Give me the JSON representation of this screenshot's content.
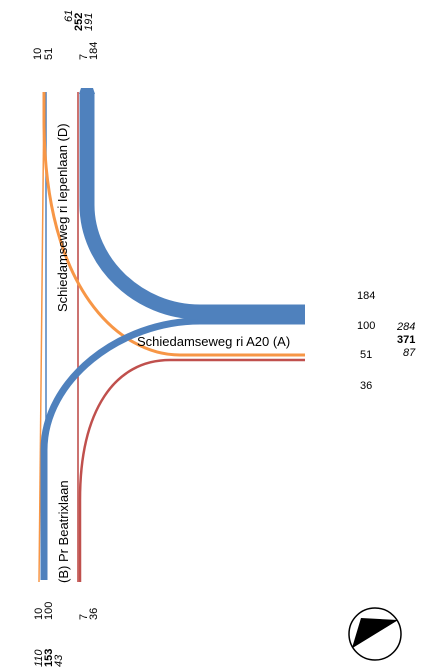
{
  "colors": {
    "blue": "#4f81bd",
    "orange": "#f79646",
    "red": "#c0504d",
    "background": "#ffffff",
    "text": "#000000"
  },
  "roads": {
    "left": "(B) Pr Beatrixlaan",
    "top": "Schiedamseweg ri Iepenlaan (D)",
    "right": "Schiedamseweg ri A20 (A)"
  },
  "top_counts": {
    "movements": [
      "10",
      "51",
      "7",
      "184"
    ],
    "totals": {
      "in": "61",
      "sum": "252",
      "out": "191"
    }
  },
  "left_counts": {
    "movements": [
      "10",
      "100",
      "7",
      "36"
    ],
    "totals": {
      "in": "110",
      "sum": "153",
      "out": "43"
    }
  },
  "right_counts": {
    "movements": [
      "184",
      "100",
      "51",
      "36"
    ],
    "totals": {
      "in": "284",
      "sum": "371",
      "out": "87"
    }
  },
  "north_arrow": "compass-icon"
}
